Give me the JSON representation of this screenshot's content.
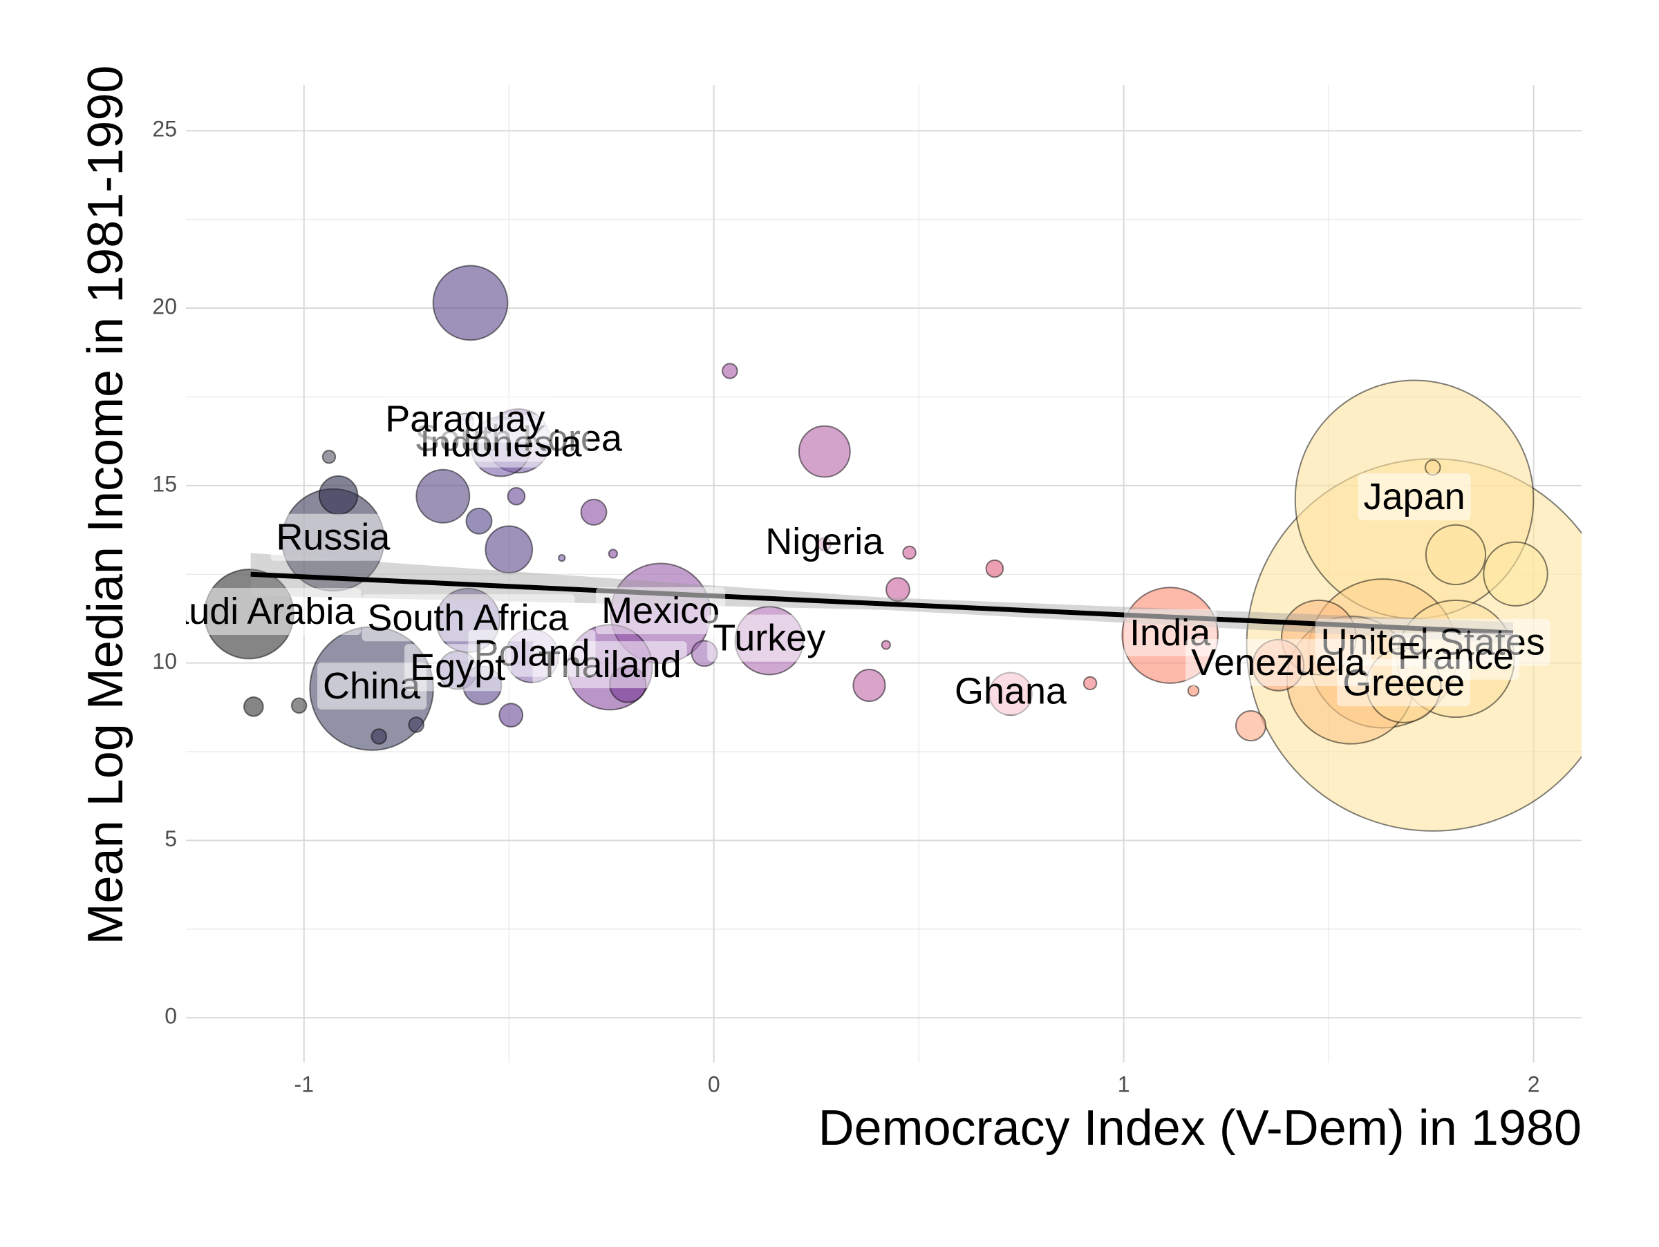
{
  "chart_data": {
    "type": "bubble",
    "x_label": "Democracy Index (V-Dem) in 1980",
    "y_label": "Mean Log Median Income in 1981-1990",
    "xlim": [
      -1.288,
      2.117
    ],
    "ylim": [
      -1.26,
      26.29
    ],
    "xticks": [
      -1,
      0,
      1,
      2
    ],
    "yticks": [
      0,
      5,
      10,
      15,
      20,
      25
    ],
    "xminor": [
      -0.5,
      0.5,
      1.5
    ],
    "yminor": [
      2.5,
      7.5,
      12.5,
      17.5,
      22.5
    ],
    "grid": true,
    "points": {
      "x": [
        1.754,
        1.709,
        1.632,
        1.554,
        -0.835,
        1.81,
        -0.929,
        -0.13,
        1.113,
        -1.134,
        -0.254,
        -0.594,
        1.476,
        1.683,
        0.135,
        1.956,
        -0.6,
        -0.477,
        -0.52,
        1.81,
        -0.444,
        -0.661,
        1.377,
        0.27,
        -0.5,
        0.724,
        -0.625,
        -0.916,
        -0.565,
        -0.21,
        0.379,
        1.31,
        -0.293,
        -0.573,
        -0.023,
        0.449,
        -0.495,
        -1.123,
        -0.607,
        0.685,
        -0.482,
        0.27,
        0.039,
        -1.012,
        -0.817,
        -0.726,
        0.477,
        0.918,
        -0.939,
        1.754,
        1.17,
        0.42,
        -0.246,
        -0.371
      ],
      "y": [
        10.51,
        14.61,
        10.27,
        9.52,
        9.28,
        10.12,
        13.47,
        11.4,
        10.78,
        11.38,
        9.88,
        20.15,
        10.72,
        9.37,
        10.63,
        12.51,
        11.2,
        16.26,
        16.1,
        13.05,
        10.2,
        14.7,
        9.94,
        15.96,
        13.2,
        9.13,
        9.8,
        14.73,
        9.37,
        9.4,
        9.37,
        8.23,
        14.25,
        14.0,
        10.27,
        12.07,
        8.53,
        8.77,
        16.8,
        12.66,
        14.7,
        13.35,
        18.23,
        8.8,
        7.93,
        8.26,
        13.11,
        9.43,
        15.81,
        15.51,
        9.22,
        10.51,
        13.08,
        12.96
      ],
      "size": [
        175,
        112,
        70,
        60,
        58,
        55,
        48,
        47,
        45,
        42,
        40,
        35,
        35,
        35,
        32,
        30,
        30,
        30,
        28,
        28,
        25,
        25,
        24,
        24,
        22,
        20,
        18,
        18,
        18,
        17,
        15,
        14,
        12,
        12,
        12,
        11,
        11,
        9,
        8,
        8,
        8,
        6,
        7,
        7,
        7,
        7,
        6,
        6,
        6,
        7,
        5,
        4,
        4,
        3
      ],
      "colors": [
        "#fde5a0",
        "#fde2a0",
        "#fdd08e",
        "#fdc88a",
        "#4a4a6a",
        "#fde0a0",
        "#3a3a58",
        "#9b5fae",
        "#fb8a72",
        "#333333",
        "#8c4fa4",
        "#5e4a8c",
        "#fdbb84",
        "#fdd895",
        "#b070b5",
        "#fde8a2",
        "#6a5a9a",
        "#7a5fa8",
        "#7a62a8",
        "#fde2a0",
        "#8a6ab0",
        "#5a4a86",
        "#fca985",
        "#b566a8",
        "#5e4a8c",
        "#f08aa0",
        "#6a5a9a",
        "#2e2e4e",
        "#5e4a8c",
        "#7a3a94",
        "#c066a6",
        "#fca985",
        "#8a50a4",
        "#55468a",
        "#a070b4",
        "#c8609e",
        "#6a4a98",
        "#333333",
        "#6a5a9a",
        "#e0607e",
        "#6a4a98",
        "#c0669e",
        "#aa5aa8",
        "#444444",
        "#333355",
        "#3e3e60",
        "#d0609a",
        "#f07a80",
        "#555566",
        "#fdd895",
        "#fb9070",
        "#c8609e",
        "#8a50a4",
        "#7a5fa8"
      ],
      "labels": [
        "United States",
        "Japan",
        null,
        null,
        "China",
        "France",
        "Russia",
        "Mexico",
        "India",
        "Saudi Arabia",
        "Thailand",
        null,
        null,
        "Greece",
        "Turkey",
        null,
        "South Africa",
        "South Korea",
        "Indonesia",
        null,
        "Poland",
        null,
        "Venezuela",
        null,
        null,
        "Ghana",
        "Egypt",
        null,
        null,
        null,
        null,
        null,
        null,
        null,
        null,
        null,
        null,
        null,
        "Paraguay",
        null,
        null,
        "Nigeria",
        null,
        null,
        null,
        null,
        null,
        null,
        null,
        null,
        null,
        null,
        null,
        null
      ]
    },
    "trend": {
      "x": [
        -1.13,
        0.41,
        1.95
      ],
      "y": [
        12.5,
        11.67,
        10.85
      ],
      "ci_lower": [
        11.9,
        11.5,
        10.55
      ],
      "ci_upper": [
        13.1,
        11.85,
        11.15
      ]
    }
  }
}
